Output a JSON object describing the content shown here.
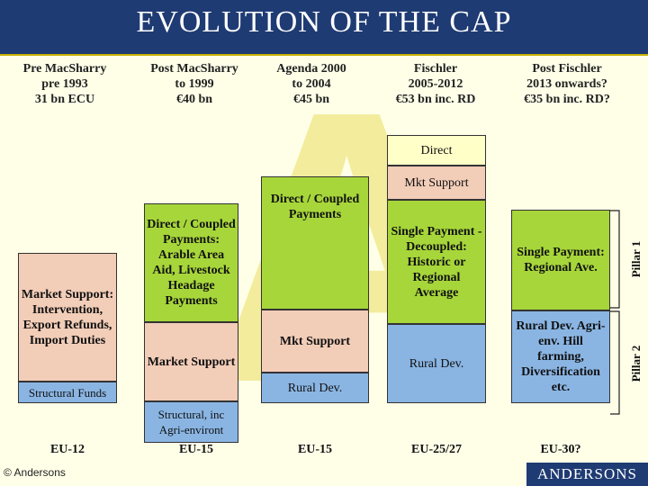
{
  "slide": {
    "title": "EVOLUTION OF THE CAP",
    "phases": [
      {
        "line1": "Pre MacSharry",
        "line2": "pre 1993",
        "line3": "31 bn ECU"
      },
      {
        "line1": "Post MacSharry",
        "line2": "to 1999",
        "line3": "€40 bn"
      },
      {
        "line1": "Agenda 2000",
        "line2": "to 2004",
        "line3": "€45 bn"
      },
      {
        "line1": "Fischler",
        "line2": "2005-2012",
        "line3": "€53 bn inc. RD"
      },
      {
        "line1": "Post Fischler",
        "line2": "2013 onwards?",
        "line3": "€35 bn inc. RD?"
      }
    ],
    "columns": {
      "c1": {
        "market": "Market Support: Intervention, Export Refunds, Import Duties",
        "structural": "Structural Funds",
        "label": "EU-12"
      },
      "c2": {
        "direct": "Direct / Coupled Payments: Arable Area Aid, Livestock Headage Payments",
        "market": "Market Support",
        "structural": "Structural, inc Agri-environt",
        "label": "EU-15"
      },
      "c3": {
        "direct": "Direct / Coupled Payments",
        "market": "Mkt Support",
        "rural": "Rural Dev.",
        "label": "EU-15"
      },
      "c4": {
        "direct": "Direct",
        "mkt": "Mkt Support",
        "single": "Single Payment - Decoupled: Historic or Regional Average",
        "rural": "Rural Dev.",
        "label": "EU-25/27"
      },
      "c5": {
        "single": "Single Payment: Regional Ave.",
        "rural": "Rural Dev. Agri-env. Hill farming, Diversification etc.",
        "label": "EU-30?"
      }
    },
    "pillars": {
      "p1": "Pillar 1",
      "p2": "Pillar 2"
    },
    "logo": "ANDERSONS",
    "copyright": "© Andersons"
  }
}
